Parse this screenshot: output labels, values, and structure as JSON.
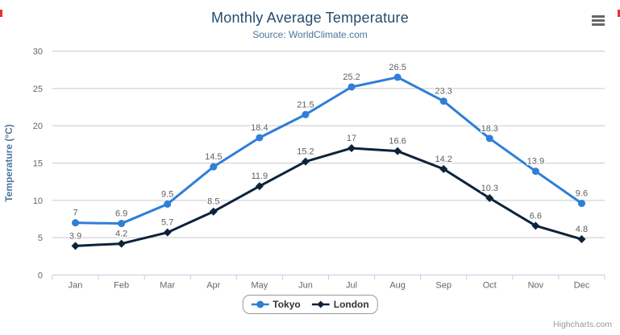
{
  "header": {
    "title": "Monthly Average Temperature",
    "subtitle": "Source: WorldClimate.com"
  },
  "credits": "Highcharts.com",
  "context_menu": {
    "icon": "hamburger-menu-icon"
  },
  "colors": {
    "title": "#274b6d",
    "subtitle": "#4d759e",
    "axis_label": "#666666",
    "axis_line": "#c0d0e0",
    "grid_line": "#c9c9c9",
    "data_label": "#606060",
    "legend_text": "#333333",
    "legend_border": "#999999",
    "credits_text": "#999999",
    "tokyo": "#2f7ed8",
    "london": "#0d233a"
  },
  "chart_data": {
    "type": "line",
    "title": "Monthly Average Temperature",
    "subtitle": "Source: WorldClimate.com",
    "xlabel": "",
    "ylabel": "Temperature (°C)",
    "ylim": [
      0,
      30
    ],
    "ytick_interval": 5,
    "grid": true,
    "legend_position": "bottom-center",
    "data_labels": true,
    "categories": [
      "Jan",
      "Feb",
      "Mar",
      "Apr",
      "May",
      "Jun",
      "Jul",
      "Aug",
      "Sep",
      "Oct",
      "Nov",
      "Dec"
    ],
    "series": [
      {
        "name": "Tokyo",
        "color": "#2f7ed8",
        "marker": "circle",
        "values": [
          7.0,
          6.9,
          9.5,
          14.5,
          18.4,
          21.5,
          25.2,
          26.5,
          23.3,
          18.3,
          13.9,
          9.6
        ]
      },
      {
        "name": "London",
        "color": "#0d233a",
        "marker": "diamond",
        "values": [
          3.9,
          4.2,
          5.7,
          8.5,
          11.9,
          15.2,
          17.0,
          16.6,
          14.2,
          10.3,
          6.6,
          4.8
        ]
      }
    ]
  }
}
